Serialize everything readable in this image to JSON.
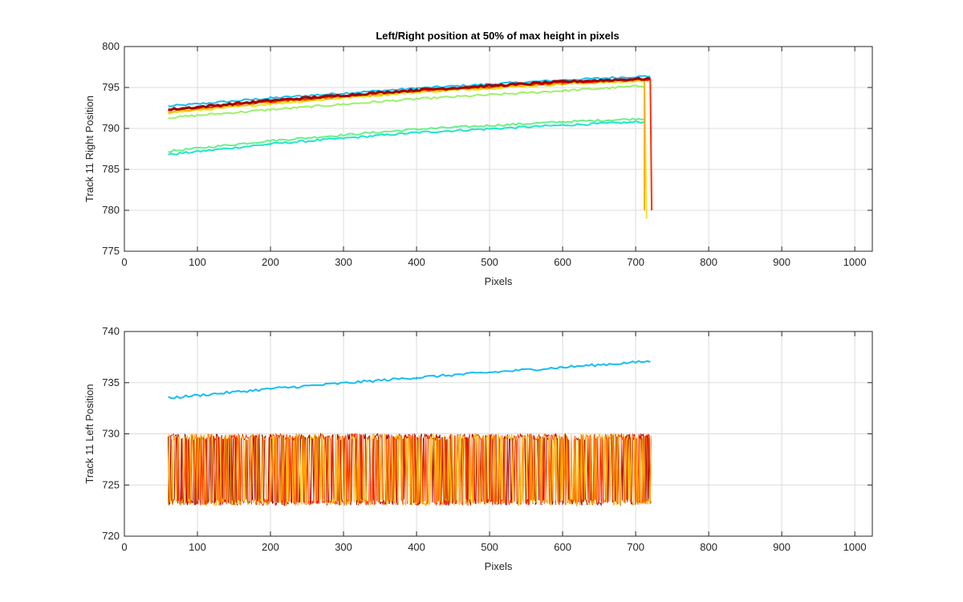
{
  "figure": {
    "title": "Left/Right position at 50% of max height in pixels"
  },
  "chart_data": [
    {
      "type": "line",
      "title": "Left/Right position at 50% of max height in pixels",
      "xlabel": "Pixels",
      "ylabel": "Track 11 Right Position",
      "xlim": [
        0,
        1024
      ],
      "ylim": [
        775,
        800
      ],
      "xticks": [
        0,
        100,
        200,
        300,
        400,
        500,
        600,
        700,
        800,
        900,
        1000
      ],
      "yticks": [
        775,
        780,
        785,
        790,
        795,
        800
      ],
      "grid": true,
      "series": [
        {
          "color": "#17bdf0",
          "x": [
            60,
            200,
            400,
            600,
            720
          ],
          "y": [
            792.7,
            793.7,
            794.9,
            795.9,
            796.4
          ]
        },
        {
          "color": "#1fe6c8",
          "x": [
            60,
            200,
            400,
            600,
            712
          ],
          "y": [
            786.8,
            788.1,
            789.5,
            790.4,
            790.8
          ]
        },
        {
          "color": "#6af08a",
          "x": [
            60,
            200,
            400,
            600,
            712
          ],
          "y": [
            787.2,
            788.5,
            789.9,
            790.8,
            791.2
          ]
        },
        {
          "color": "#9ef06a",
          "x": [
            60,
            200,
            400,
            600,
            712
          ],
          "y": [
            791.3,
            792.3,
            793.6,
            794.6,
            795.2
          ]
        },
        {
          "color": "#e6e632",
          "x": [
            60,
            200,
            400,
            600,
            715,
            715
          ],
          "y": [
            791.9,
            793.0,
            794.4,
            795.4,
            795.8,
            779.0
          ]
        },
        {
          "color": "#ffb000",
          "x": [
            60,
            200,
            400,
            600,
            712,
            712
          ],
          "y": [
            792.0,
            793.2,
            794.5,
            795.5,
            795.9,
            780.0
          ]
        },
        {
          "color": "#ff3000",
          "x": [
            60,
            200,
            400,
            600,
            722,
            722
          ],
          "y": [
            792.2,
            793.3,
            794.6,
            795.6,
            796.0,
            780.0
          ]
        },
        {
          "color": "#a00000",
          "x": [
            60,
            200,
            400,
            600,
            722
          ],
          "y": [
            792.3,
            793.4,
            794.7,
            795.7,
            796.1
          ]
        }
      ]
    },
    {
      "type": "line",
      "title": "",
      "xlabel": "Pixels",
      "ylabel": "Track 11 Left Position",
      "xlim": [
        0,
        1024
      ],
      "ylim": [
        720,
        740
      ],
      "xticks": [
        0,
        100,
        200,
        300,
        400,
        500,
        600,
        700,
        800,
        900,
        1000
      ],
      "yticks": [
        720,
        725,
        730,
        735,
        740
      ],
      "grid": true,
      "series": [
        {
          "color": "#17bdf0",
          "x": [
            60,
            200,
            400,
            600,
            722
          ],
          "y": [
            733.5,
            734.4,
            735.5,
            736.5,
            737.1
          ]
        },
        {
          "color": "#a00000",
          "type": "oscillating band",
          "x_range": [
            60,
            722
          ],
          "y_range": [
            723,
            730
          ]
        },
        {
          "color": "#ff3000",
          "type": "oscillating band",
          "x_range": [
            60,
            722
          ],
          "y_range": [
            723,
            730
          ]
        },
        {
          "color": "#ffb000",
          "type": "oscillating band",
          "x_range": [
            60,
            722
          ],
          "y_range": [
            723,
            730
          ]
        }
      ]
    }
  ]
}
